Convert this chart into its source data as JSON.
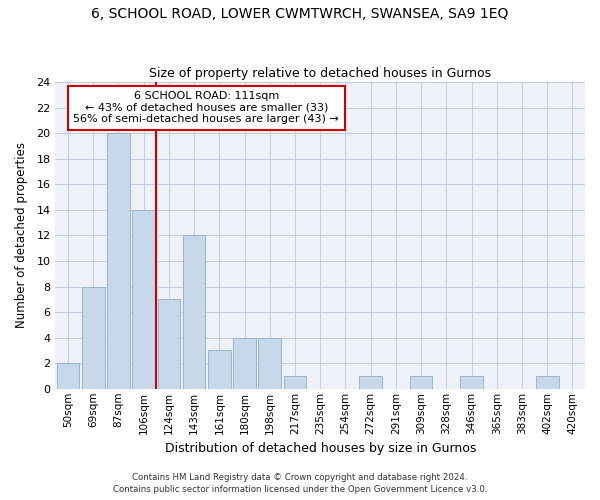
{
  "title1": "6, SCHOOL ROAD, LOWER CWMTWRCH, SWANSEA, SA9 1EQ",
  "title2": "Size of property relative to detached houses in Gurnos",
  "xlabel": "Distribution of detached houses by size in Gurnos",
  "ylabel": "Number of detached properties",
  "bar_labels": [
    "50sqm",
    "69sqm",
    "87sqm",
    "106sqm",
    "124sqm",
    "143sqm",
    "161sqm",
    "180sqm",
    "198sqm",
    "217sqm",
    "235sqm",
    "254sqm",
    "272sqm",
    "291sqm",
    "309sqm",
    "328sqm",
    "346sqm",
    "365sqm",
    "383sqm",
    "402sqm",
    "420sqm"
  ],
  "bar_values": [
    2,
    8,
    20,
    14,
    7,
    12,
    3,
    4,
    4,
    1,
    0,
    0,
    1,
    0,
    1,
    0,
    1,
    0,
    0,
    1,
    0
  ],
  "bar_color": "#c8d8eb",
  "bar_edge_color": "#9ab4cc",
  "vline_x_idx": 3,
  "vline_color": "#cc0000",
  "annotation_title": "6 SCHOOL ROAD: 111sqm",
  "annotation_line1": "← 43% of detached houses are smaller (33)",
  "annotation_line2": "56% of semi-detached houses are larger (43) →",
  "annotation_box_color": "#cc0000",
  "ylim": [
    0,
    24
  ],
  "yticks": [
    0,
    2,
    4,
    6,
    8,
    10,
    12,
    14,
    16,
    18,
    20,
    22,
    24
  ],
  "footer1": "Contains HM Land Registry data © Crown copyright and database right 2024.",
  "footer2": "Contains public sector information licensed under the Open Government Licence v3.0.",
  "bg_color": "#eef2f8",
  "grid_color": "#c0cce0"
}
